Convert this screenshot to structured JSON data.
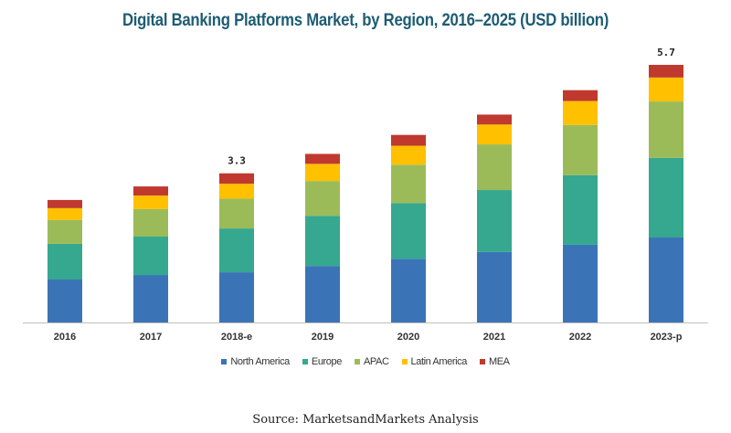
{
  "chart_data": {
    "type": "bar",
    "stacked": true,
    "title": "Digital Banking Platforms Market, by Region, 2016–2025 (USD billion)",
    "xlabel": "",
    "ylabel": "",
    "ylim": [
      0,
      5.7
    ],
    "grid": false,
    "legend_placement": "bottom",
    "categories": [
      "2016",
      "2017",
      "2018-e",
      "2019",
      "2020",
      "2021",
      "2022",
      "2023-p"
    ],
    "series": [
      {
        "name": "North America",
        "color": "#3a74b6",
        "values": [
          0.95,
          1.05,
          1.11,
          1.25,
          1.41,
          1.56,
          1.72,
          1.88
        ]
      },
      {
        "name": "Europe",
        "color": "#35a88f",
        "values": [
          0.79,
          0.85,
          0.97,
          1.11,
          1.23,
          1.37,
          1.54,
          1.76
        ]
      },
      {
        "name": "APAC",
        "color": "#9bbb59",
        "values": [
          0.53,
          0.61,
          0.66,
          0.77,
          0.85,
          1.01,
          1.11,
          1.25
        ]
      },
      {
        "name": "Latin America",
        "color": "#ffc000",
        "values": [
          0.26,
          0.3,
          0.33,
          0.38,
          0.42,
          0.44,
          0.53,
          0.53
        ]
      },
      {
        "name": "MEA",
        "color": "#c0392f",
        "values": [
          0.18,
          0.2,
          0.23,
          0.22,
          0.24,
          0.22,
          0.24,
          0.28
        ]
      }
    ],
    "annotations": [
      {
        "category": "2018-e",
        "text": "3.3"
      },
      {
        "category": "2023-p",
        "text": "5.7"
      }
    ]
  },
  "source": "Source: MarketsandMarkets Analysis"
}
